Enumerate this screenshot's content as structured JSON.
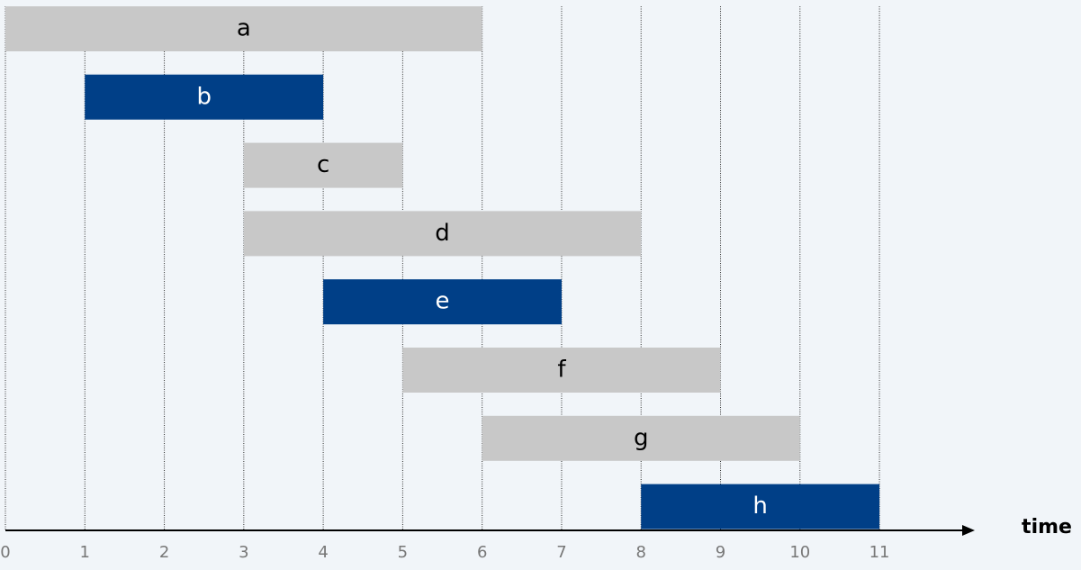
{
  "chart_data": {
    "type": "interval",
    "categories": [
      "a",
      "b",
      "c",
      "d",
      "e",
      "f",
      "g",
      "h"
    ],
    "start": [
      0,
      1,
      3,
      3,
      4,
      5,
      6,
      8
    ],
    "end": [
      6,
      4,
      5,
      8,
      7,
      9,
      10,
      11
    ],
    "colors": [
      "#c8c8c8",
      "#003f87",
      "#c8c8c8",
      "#c8c8c8",
      "#003f87",
      "#c8c8c8",
      "#c8c8c8",
      "#003f87"
    ],
    "x_label": "time",
    "xlim": [
      0,
      12.2
    ],
    "xticks": [
      0,
      1,
      2,
      3,
      4,
      5,
      6,
      7,
      8,
      9,
      10,
      11
    ],
    "grid": true
  }
}
